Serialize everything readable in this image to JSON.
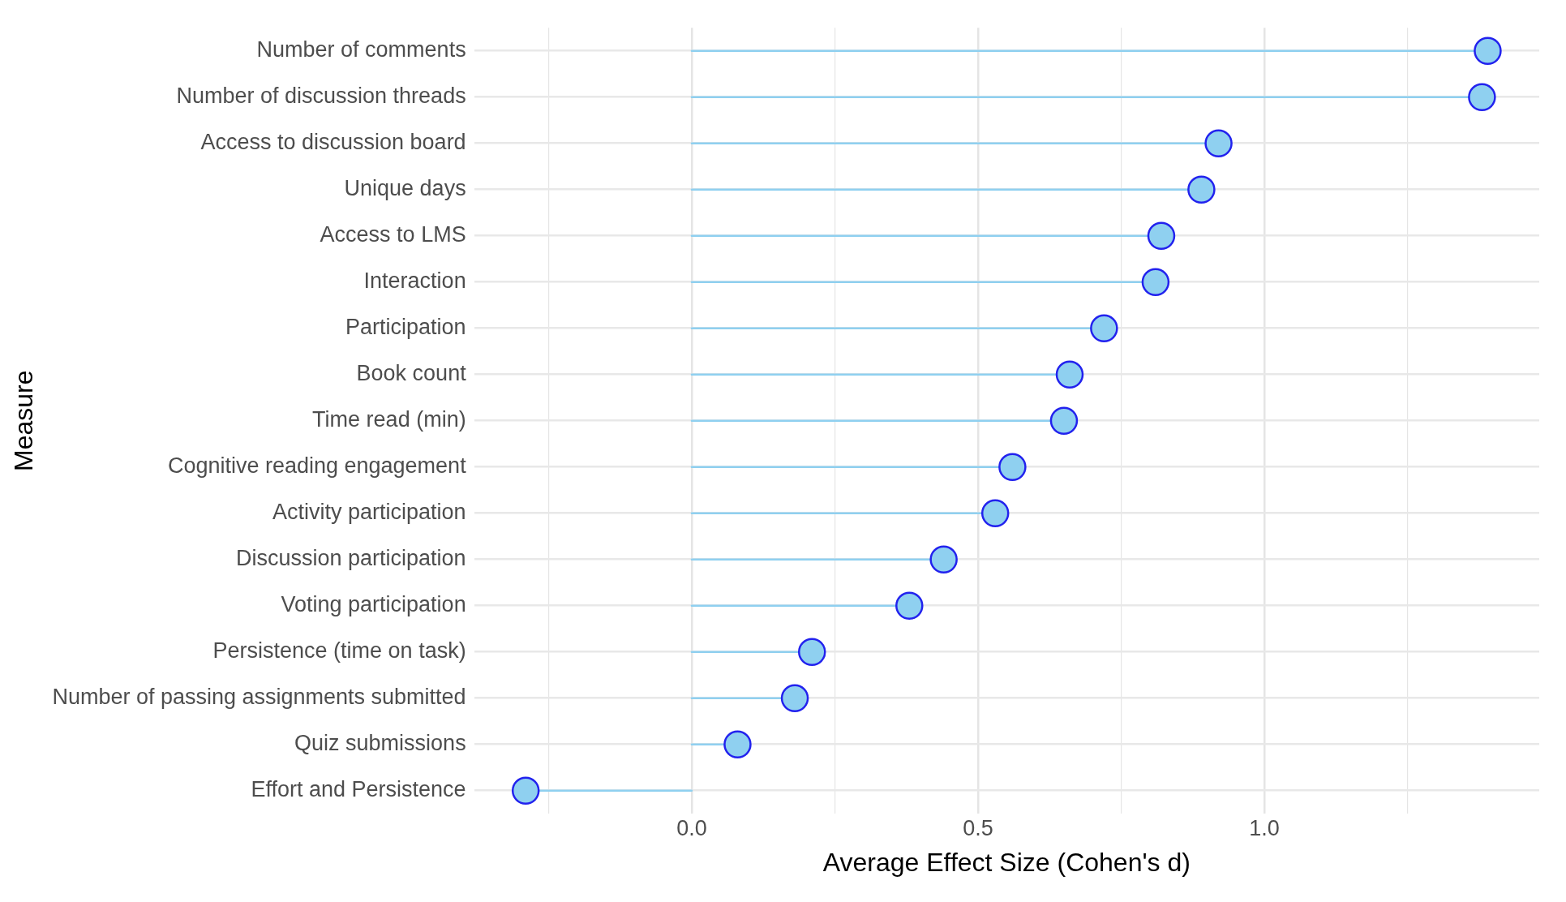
{
  "chart_data": {
    "type": "lollipop",
    "orientation": "horizontal",
    "xlabel": "Average Effect Size (Cohen's d)",
    "ylabel": "Measure",
    "categories": [
      "Number of comments",
      "Number of discussion threads",
      "Access to discussion board",
      "Unique days",
      "Access to LMS",
      "Interaction",
      "Participation",
      "Book count",
      "Time read (min)",
      "Cognitive reading engagement",
      "Activity participation",
      "Discussion participation",
      "Voting participation",
      "Persistence (time on task)",
      "Number of passing assignments submitted",
      "Quiz submissions",
      "Effort and Persistence"
    ],
    "values": [
      1.39,
      1.38,
      0.92,
      0.89,
      0.82,
      0.81,
      0.72,
      0.66,
      0.65,
      0.56,
      0.53,
      0.44,
      0.38,
      0.21,
      0.18,
      0.08,
      -0.29
    ],
    "color": "#8fd0f0",
    "xlim": [
      -0.38,
      1.48
    ],
    "xticks": [
      {
        "value": -0.25,
        "label": null
      },
      {
        "value": 0,
        "label": "0.0"
      },
      {
        "value": 0.25,
        "label": null
      },
      {
        "value": 0.5,
        "label": "0.5"
      },
      {
        "value": 0.75,
        "label": null
      },
      {
        "value": 1,
        "label": "1.0"
      },
      {
        "value": 1.25,
        "label": null
      }
    ],
    "grid": true,
    "marker": "circle",
    "legend": false
  }
}
